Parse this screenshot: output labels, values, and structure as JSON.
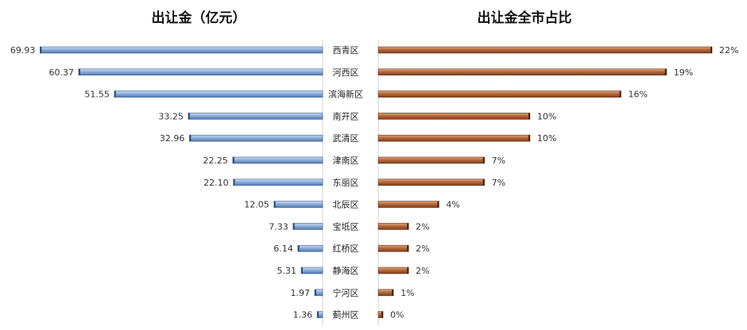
{
  "chart_data": [
    {
      "type": "bar",
      "orientation": "horizontal",
      "direction": "leftward",
      "title": "出让金（亿元）",
      "categories": [
        "西青区",
        "河西区",
        "滨海新区",
        "南开区",
        "武清区",
        "津南区",
        "东丽区",
        "北辰区",
        "宝坻区",
        "红桥区",
        "静海区",
        "宁河区",
        "蓟州区"
      ],
      "values": [
        69.93,
        60.37,
        51.55,
        33.25,
        32.96,
        22.25,
        22.1,
        12.05,
        7.33,
        6.14,
        5.31,
        1.97,
        1.36
      ],
      "value_labels": [
        "69.93",
        "60.37",
        "51.55",
        "33.25",
        "32.96",
        "22.25",
        "22.10",
        "12.05",
        "7.33",
        "6.14",
        "5.31",
        "1.97",
        "1.36"
      ],
      "xlim": [
        0,
        70
      ],
      "grid": false,
      "color": "#7fa3d6"
    },
    {
      "type": "bar",
      "orientation": "horizontal",
      "direction": "rightward",
      "title": "出让金全市占比",
      "categories": [
        "西青区",
        "河西区",
        "滨海新区",
        "南开区",
        "武清区",
        "津南区",
        "东丽区",
        "北辰区",
        "宝坻区",
        "红桥区",
        "静海区",
        "宁河区",
        "蓟州区"
      ],
      "values": [
        22,
        19,
        16,
        10,
        10,
        7,
        7,
        4,
        2,
        2,
        2,
        1,
        0
      ],
      "value_labels": [
        "22%",
        "19%",
        "16%",
        "10%",
        "10%",
        "7%",
        "7%",
        "4%",
        "2%",
        "2%",
        "2%",
        "1%",
        "0%"
      ],
      "xlim": [
        0,
        22
      ],
      "grid": false,
      "color": "#b5693a"
    }
  ]
}
